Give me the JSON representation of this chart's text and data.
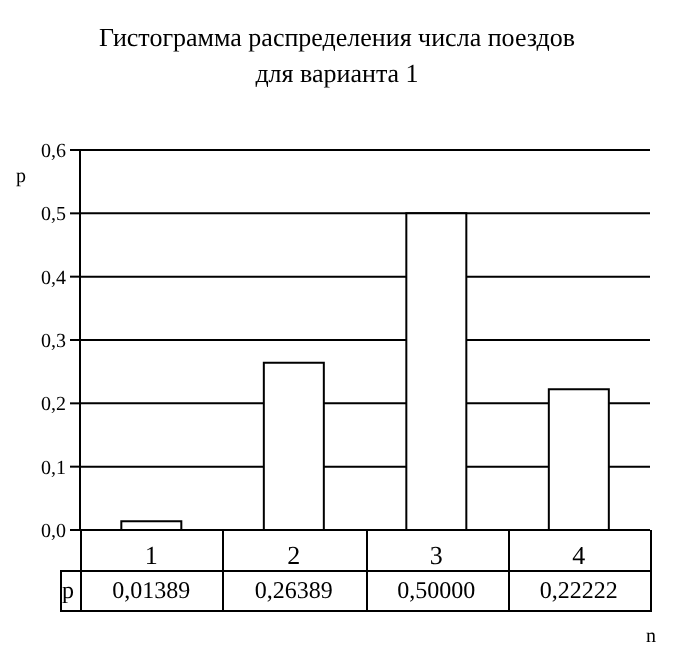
{
  "chart_data": {
    "type": "bar",
    "title": "Гистограмма распределения числа поездов\nдля варианта 1",
    "xlabel": "n",
    "ylabel": "p",
    "categories": [
      "1",
      "2",
      "3",
      "4"
    ],
    "values": [
      0.01389,
      0.26389,
      0.5,
      0.22222
    ],
    "value_labels": [
      "0,01389",
      "0,26389",
      "0,50000",
      "0,22222"
    ],
    "annotations": [
      "p"
    ],
    "color": "#ffffff",
    "ylim": [
      0,
      0.6
    ],
    "yticks": [
      {
        "value": 0,
        "label": "0,0"
      },
      {
        "value": 0.1,
        "label": "0,1"
      },
      {
        "value": 0.2,
        "label": "0,2"
      },
      {
        "value": 0.3,
        "label": "0,3"
      },
      {
        "value": 0.4,
        "label": "0,4"
      },
      {
        "value": 0.5,
        "label": "0,5"
      },
      {
        "value": 0.6,
        "label": "0,6"
      }
    ],
    "grid": "y"
  }
}
